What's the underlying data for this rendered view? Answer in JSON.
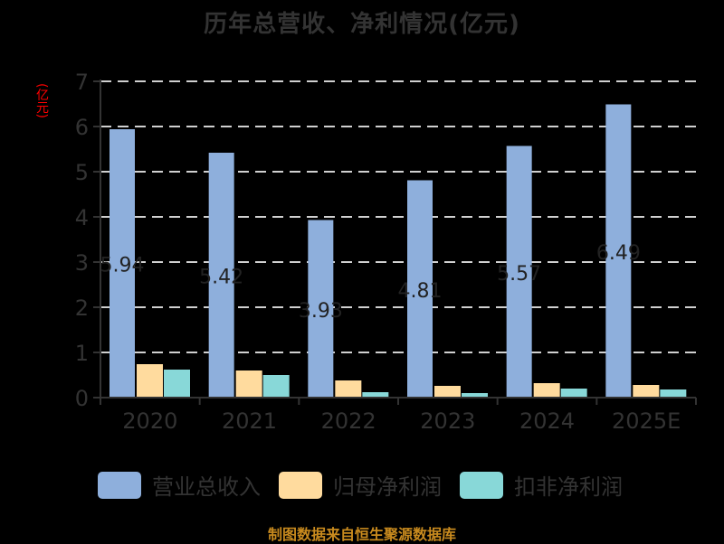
{
  "title": "历年总营收、净利情况(亿元)",
  "y_unit": "(亿元)",
  "footer": "制图数据来自恒生聚源数据库",
  "colors": {
    "revenue": "#8eafdc",
    "net_profit": "#ffdb9e",
    "deducted_profit": "#88d8d8",
    "grid": "#d0d0d0",
    "axis": "#333333",
    "unit_text": "#ff0000",
    "footer_text": "#c88a1e"
  },
  "legend": [
    {
      "label": "营业总收入",
      "color": "#8eafdc"
    },
    {
      "label": "归母净利润",
      "color": "#ffdb9e"
    },
    {
      "label": "扣非净利润",
      "color": "#88d8d8"
    }
  ],
  "y_ticks": [
    "0",
    "1",
    "2",
    "3",
    "4",
    "5",
    "6",
    "7"
  ],
  "chart_data": {
    "type": "bar",
    "title": "历年总营收、净利情况(亿元)",
    "xlabel": "",
    "ylabel": "(亿元)",
    "ylim": [
      0,
      7
    ],
    "grid": true,
    "legend_position": "bottom",
    "categories": [
      "2020",
      "2021",
      "2022",
      "2023",
      "2024",
      "2025E"
    ],
    "series": [
      {
        "name": "营业总收入",
        "values": [
          5.94,
          5.42,
          3.93,
          4.81,
          5.57,
          6.49
        ],
        "data_labels": [
          "5.94",
          "5.42",
          "3.93",
          "4.81",
          "5.57",
          "6.49"
        ]
      },
      {
        "name": "归母净利润",
        "values": [
          0.74,
          0.6,
          0.38,
          0.26,
          0.32,
          0.28
        ]
      },
      {
        "name": "扣非净利润",
        "values": [
          0.62,
          0.5,
          0.12,
          0.1,
          0.2,
          0.18
        ]
      }
    ]
  }
}
